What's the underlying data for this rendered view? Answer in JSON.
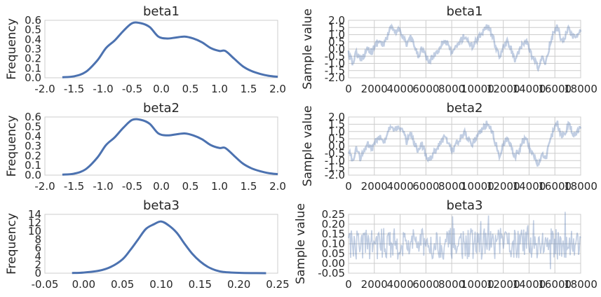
{
  "colors": {
    "kde": "#4c72b0",
    "trace": "#4c72b0",
    "trace_alpha": 0.35
  },
  "chart_data": [
    {
      "type": "line",
      "title": "beta1",
      "xlabel": "",
      "ylabel": "Frequency",
      "xlim": [
        -2.0,
        2.0
      ],
      "ylim": [
        0.0,
        0.6
      ],
      "xticks": [
        "-2.0",
        "-1.5",
        "-1.0",
        "-0.5",
        "0.0",
        "0.5",
        "1.0",
        "1.5",
        "2.0"
      ],
      "yticks": [
        "0.0",
        "0.1",
        "0.2",
        "0.3",
        "0.4",
        "0.5",
        "0.6"
      ],
      "grid": false,
      "series": [
        {
          "x": [
            -1.7,
            -1.5,
            -1.3,
            -1.1,
            -0.95,
            -0.8,
            -0.65,
            -0.5,
            -0.35,
            -0.2,
            -0.05,
            0.1,
            0.25,
            0.4,
            0.55,
            0.7,
            0.85,
            1.0,
            1.1,
            1.25,
            1.4,
            1.55,
            1.7,
            1.85,
            2.0
          ],
          "values": [
            0.005,
            0.015,
            0.06,
            0.18,
            0.31,
            0.39,
            0.49,
            0.57,
            0.57,
            0.53,
            0.43,
            0.41,
            0.42,
            0.43,
            0.41,
            0.37,
            0.31,
            0.28,
            0.28,
            0.2,
            0.12,
            0.07,
            0.04,
            0.02,
            0.01
          ]
        }
      ]
    },
    {
      "type": "line",
      "title": "beta1",
      "xlabel": "",
      "ylabel": "Sample value",
      "xlim": [
        0,
        18000
      ],
      "ylim": [
        -2.0,
        2.0
      ],
      "xticks": [
        "0",
        "2000",
        "4000",
        "6000",
        "8000",
        "10000",
        "12000",
        "14000",
        "16000",
        "18000"
      ],
      "yticks": [
        "-2.0",
        "-1.5",
        "-1.0",
        "-0.5",
        "0.0",
        "0.5",
        "1.0",
        "1.5",
        "2.0"
      ],
      "grid": true,
      "series": [
        {
          "x": [
            0,
            300,
            600,
            900,
            1200,
            1500,
            1800,
            2100,
            2400,
            2700,
            3000,
            3300,
            3600,
            3900,
            4200,
            4500,
            4800,
            5100,
            5400,
            5700,
            6000,
            6300,
            6600,
            6900,
            7200,
            7500,
            7800,
            8100,
            8400,
            8700,
            9000,
            9300,
            9600,
            9900,
            10200,
            10500,
            10800,
            11100,
            11400,
            11700,
            12000,
            12300,
            12600,
            12900,
            13200,
            13500,
            13800,
            14100,
            14400,
            14700,
            15000,
            15300,
            15600,
            15900,
            16200,
            16500,
            16800,
            17100,
            17400,
            17700,
            18000
          ],
          "values": [
            -0.3,
            -1.0,
            -0.2,
            -0.8,
            -0.4,
            0.1,
            -0.2,
            0.3,
            0.6,
            0.2,
            0.9,
            1.5,
            1.1,
            1.4,
            1.0,
            0.3,
            0.8,
            0.2,
            -0.5,
            0.1,
            -0.6,
            -0.9,
            -0.4,
            -0.2,
            0.4,
            0.6,
            0.1,
            -0.3,
            0.2,
            0.6,
            0.9,
            0.5,
            0.2,
            0.6,
            1.0,
            1.3,
            1.6,
            1.1,
            0.2,
            -0.6,
            0.1,
            0.5,
            0.0,
            -0.7,
            -0.3,
            0.3,
            0.6,
            -0.3,
            -0.8,
            -1.3,
            -0.7,
            -0.9,
            0.3,
            1.1,
            1.6,
            0.6,
            0.9,
            1.5,
            0.8,
            0.9,
            1.2
          ]
        }
      ]
    },
    {
      "type": "line",
      "title": "beta2",
      "xlabel": "",
      "ylabel": "Frequency",
      "xlim": [
        -2.0,
        2.0
      ],
      "ylim": [
        0.0,
        0.6
      ],
      "xticks": [
        "-2.0",
        "-1.5",
        "-1.0",
        "-0.5",
        "0.0",
        "0.5",
        "1.0",
        "1.5",
        "2.0"
      ],
      "yticks": [
        "0.0",
        "0.1",
        "0.2",
        "0.3",
        "0.4",
        "0.5",
        "0.6"
      ],
      "grid": false,
      "series": [
        {
          "x": [
            -1.7,
            -1.5,
            -1.3,
            -1.1,
            -0.95,
            -0.8,
            -0.65,
            -0.5,
            -0.35,
            -0.2,
            -0.05,
            0.1,
            0.25,
            0.4,
            0.55,
            0.7,
            0.85,
            1.0,
            1.1,
            1.25,
            1.4,
            1.55,
            1.7,
            1.85,
            2.0
          ],
          "values": [
            0.005,
            0.015,
            0.06,
            0.18,
            0.31,
            0.39,
            0.49,
            0.57,
            0.57,
            0.53,
            0.43,
            0.41,
            0.42,
            0.43,
            0.41,
            0.37,
            0.31,
            0.28,
            0.28,
            0.2,
            0.12,
            0.07,
            0.04,
            0.02,
            0.01
          ]
        }
      ]
    },
    {
      "type": "line",
      "title": "beta2",
      "xlabel": "",
      "ylabel": "Sample value",
      "xlim": [
        0,
        18000
      ],
      "ylim": [
        -2.0,
        2.0
      ],
      "xticks": [
        "0",
        "2000",
        "4000",
        "6000",
        "8000",
        "10000",
        "12000",
        "14000",
        "16000",
        "18000"
      ],
      "yticks": [
        "-2.0",
        "-1.5",
        "-1.0",
        "-0.5",
        "0.0",
        "0.5",
        "1.0",
        "1.5",
        "2.0"
      ],
      "grid": true,
      "series": [
        {
          "x": [
            0,
            300,
            600,
            900,
            1200,
            1500,
            1800,
            2100,
            2400,
            2700,
            3000,
            3300,
            3600,
            3900,
            4200,
            4500,
            4800,
            5100,
            5400,
            5700,
            6000,
            6300,
            6600,
            6900,
            7200,
            7500,
            7800,
            8100,
            8400,
            8700,
            9000,
            9300,
            9600,
            9900,
            10200,
            10500,
            10800,
            11100,
            11400,
            11700,
            12000,
            12300,
            12600,
            12900,
            13200,
            13500,
            13800,
            14100,
            14400,
            14700,
            15000,
            15300,
            15600,
            15900,
            16200,
            16500,
            16800,
            17100,
            17400,
            17700,
            18000
          ],
          "values": [
            -0.3,
            -1.0,
            -0.2,
            -0.8,
            -0.4,
            0.1,
            -0.2,
            0.3,
            0.6,
            0.2,
            0.9,
            1.5,
            1.1,
            1.4,
            1.0,
            0.3,
            0.8,
            0.2,
            -0.5,
            0.1,
            -0.6,
            -0.9,
            -0.4,
            -0.2,
            0.4,
            0.6,
            0.1,
            -0.3,
            0.2,
            0.6,
            0.9,
            0.5,
            0.2,
            0.6,
            1.0,
            1.3,
            1.6,
            1.1,
            0.2,
            -0.6,
            0.1,
            0.5,
            0.0,
            -0.7,
            -0.3,
            0.3,
            0.6,
            -0.3,
            -0.8,
            -1.3,
            -0.7,
            -0.9,
            0.3,
            1.1,
            1.6,
            0.6,
            0.9,
            1.5,
            0.8,
            0.9,
            1.2
          ]
        }
      ]
    },
    {
      "type": "line",
      "title": "beta3",
      "xlabel": "",
      "ylabel": "Frequency",
      "xlim": [
        -0.05,
        0.25
      ],
      "ylim": [
        0,
        14
      ],
      "xticks": [
        "-0.05",
        "0.00",
        "0.05",
        "0.10",
        "0.15",
        "0.20",
        "0.25"
      ],
      "yticks": [
        "0",
        "2",
        "4",
        "6",
        "8",
        "10",
        "12",
        "14"
      ],
      "grid": false,
      "series": [
        {
          "x": [
            -0.015,
            0.0,
            0.02,
            0.035,
            0.05,
            0.06,
            0.07,
            0.08,
            0.09,
            0.1,
            0.11,
            0.12,
            0.13,
            0.14,
            0.15,
            0.16,
            0.17,
            0.18,
            0.2,
            0.22,
            0.235
          ],
          "values": [
            0.05,
            0.15,
            0.6,
            1.5,
            3.3,
            5.5,
            8.0,
            10.5,
            11.6,
            12.3,
            11.3,
            9.6,
            7.0,
            4.6,
            2.8,
            1.5,
            0.7,
            0.3,
            0.08,
            0.02,
            0.01
          ]
        }
      ]
    },
    {
      "type": "line",
      "title": "beta3",
      "xlabel": "",
      "ylabel": "Sample value",
      "xlim": [
        0,
        18000
      ],
      "ylim": [
        -0.05,
        0.25
      ],
      "xticks": [
        "0",
        "2000",
        "4000",
        "6000",
        "8000",
        "10000",
        "12000",
        "14000",
        "16000",
        "18000"
      ],
      "yticks": [
        "-0.05",
        "0.00",
        "0.05",
        "0.10",
        "0.15",
        "0.20",
        "0.25"
      ],
      "grid": true,
      "series": [
        {
          "band_center": 0.1,
          "band_low": 0.03,
          "band_high": 0.17,
          "spike_max": 0.24,
          "spike_min": -0.03
        }
      ]
    }
  ]
}
